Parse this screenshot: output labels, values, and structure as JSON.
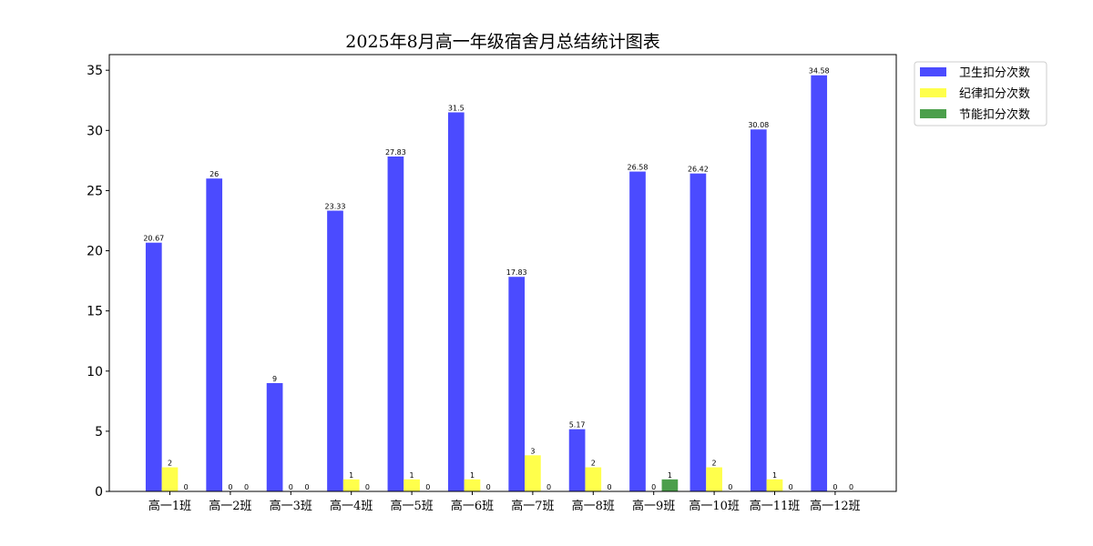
{
  "chart_data": {
    "type": "bar",
    "title": "2025年8月高一年级宿舍月总结统计图表",
    "xlabel": "",
    "ylabel": "",
    "ylim": [
      0,
      36.3
    ],
    "yticks": [
      0,
      5,
      10,
      15,
      20,
      25,
      30,
      35
    ],
    "grid": false,
    "legend_position": "outside-top-right",
    "categories": [
      "高一1班",
      "高一2班",
      "高一3班",
      "高一4班",
      "高一5班",
      "高一6班",
      "高一7班",
      "高一8班",
      "高一9班",
      "高一10班",
      "高一11班",
      "高一12班"
    ],
    "series": [
      {
        "name": "卫生扣分次数",
        "color": "#4b4bff",
        "values": [
          20.67,
          26,
          9,
          23.33,
          27.83,
          31.5,
          17.83,
          5.17,
          26.58,
          26.42,
          30.08,
          34.58
        ],
        "labels": [
          "20.67",
          "26",
          "9",
          "23.33",
          "27.83",
          "31.5",
          "17.83",
          "5.17",
          "26.58",
          "26.42",
          "30.08",
          "34.58"
        ]
      },
      {
        "name": "纪律扣分次数",
        "color": "#ffff4b",
        "values": [
          2,
          0,
          0,
          1,
          1,
          1,
          3,
          2,
          0,
          2,
          1,
          0
        ],
        "labels": [
          "2",
          "0",
          "0",
          "1",
          "1",
          "1",
          "3",
          "2",
          "0",
          "2",
          "1",
          "0"
        ]
      },
      {
        "name": "节能扣分次数",
        "color": "#4b9f4b",
        "values": [
          0,
          0,
          0,
          0,
          0,
          0,
          0,
          0,
          1,
          0,
          0,
          0
        ],
        "labels": [
          "0",
          "0",
          "0",
          "0",
          "0",
          "0",
          "0",
          "0",
          "1",
          "0",
          "0",
          "0"
        ]
      }
    ]
  }
}
